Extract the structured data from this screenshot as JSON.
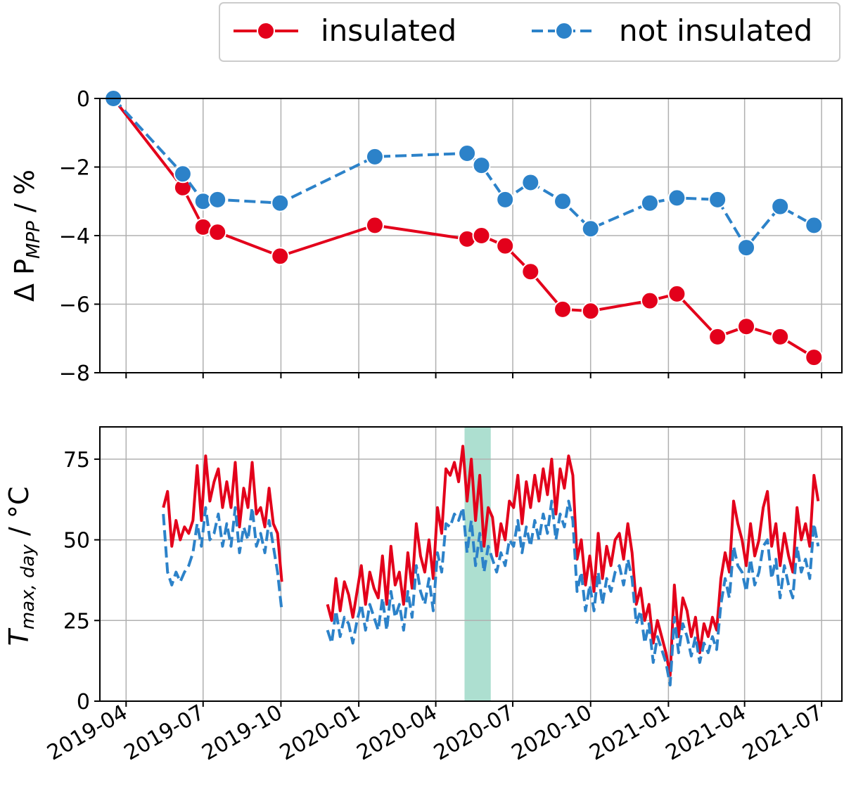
{
  "legend": {
    "placement": "top-right",
    "entries": [
      {
        "label": "insulated",
        "color": "#e3001b",
        "style": "solid",
        "marker": "circle"
      },
      {
        "label": "not insulated",
        "color": "#2c82c9",
        "style": "dashed",
        "marker": "circle"
      }
    ]
  },
  "colors": {
    "insulated": "#e3001b",
    "not_insulated": "#2c82c9",
    "highlight_band": "#9fd9c8",
    "grid": "#b0b0b0"
  },
  "x_ticks": [
    "2019-04",
    "2019-07",
    "2019-10",
    "2020-01",
    "2020-04",
    "2020-07",
    "2020-10",
    "2021-01",
    "2021-04",
    "2021-07"
  ],
  "chart_data": [
    {
      "type": "line",
      "ylabel_main": "Δ P",
      "ylabel_sub": "MPP",
      "ylabel_unit": " / %",
      "xlim": [
        "2019-03-01",
        "2021-07-25"
      ],
      "ylim": [
        -8,
        0
      ],
      "yticks": [
        0,
        -2,
        -4,
        -6,
        -8
      ],
      "ytick_labels": [
        "0",
        "−2",
        "−4",
        "−6",
        "−8"
      ],
      "grid": true,
      "series": [
        {
          "name": "insulated",
          "x": [
            "2019-03-17",
            "2019-06-07",
            "2019-07-01",
            "2019-07-18",
            "2019-09-30",
            "2020-01-20",
            "2020-05-08",
            "2020-05-25",
            "2020-06-22",
            "2020-07-22",
            "2020-08-29",
            "2020-10-01",
            "2020-12-10",
            "2021-01-11",
            "2021-02-28",
            "2021-04-03",
            "2021-05-13",
            "2021-06-22"
          ],
          "y": [
            0,
            -2.6,
            -3.75,
            -3.9,
            -4.6,
            -3.7,
            -4.1,
            -4.0,
            -4.3,
            -5.05,
            -6.15,
            -6.2,
            -5.9,
            -5.7,
            -6.95,
            -6.65,
            -6.95,
            -7.55
          ]
        },
        {
          "name": "not insulated",
          "x": [
            "2019-03-17",
            "2019-06-07",
            "2019-07-01",
            "2019-07-18",
            "2019-09-30",
            "2020-01-20",
            "2020-05-08",
            "2020-05-25",
            "2020-06-22",
            "2020-07-22",
            "2020-08-29",
            "2020-10-01",
            "2020-12-10",
            "2021-01-11",
            "2021-02-28",
            "2021-04-03",
            "2021-05-13",
            "2021-06-22"
          ],
          "y": [
            0,
            -2.2,
            -3.0,
            -2.95,
            -3.05,
            -1.7,
            -1.6,
            -1.95,
            -2.95,
            -2.45,
            -3.0,
            -3.8,
            -3.05,
            -2.9,
            -2.95,
            -4.35,
            -3.15,
            -3.7
          ]
        }
      ]
    },
    {
      "type": "line",
      "ylabel_main": "T",
      "ylabel_sub": "max, day",
      "ylabel_unit": " / °C",
      "xlim": [
        "2019-03-01",
        "2021-07-25"
      ],
      "ylim": [
        0,
        85
      ],
      "yticks": [
        0,
        25,
        50,
        75
      ],
      "ytick_labels": [
        "0",
        "25",
        "50",
        "75"
      ],
      "grid": true,
      "highlight_band": [
        "2020-05-05",
        "2020-06-05"
      ],
      "series": [
        {
          "name": "insulated",
          "segments": [
            {
              "x": [
                "2019-05-15",
                "2019-05-20",
                "2019-05-25",
                "2019-05-30",
                "2019-06-04",
                "2019-06-09",
                "2019-06-14",
                "2019-06-19",
                "2019-06-24",
                "2019-06-29",
                "2019-07-04",
                "2019-07-09",
                "2019-07-14",
                "2019-07-19",
                "2019-07-24",
                "2019-07-29",
                "2019-08-03",
                "2019-08-08",
                "2019-08-13",
                "2019-08-18",
                "2019-08-23",
                "2019-08-28",
                "2019-09-02",
                "2019-09-07",
                "2019-09-12",
                "2019-09-17",
                "2019-09-22",
                "2019-09-27",
                "2019-10-02"
              ],
              "y": [
                60,
                65,
                48,
                56,
                50,
                54,
                52,
                56,
                73,
                56,
                76,
                62,
                68,
                72,
                60,
                68,
                60,
                74,
                54,
                66,
                60,
                74,
                58,
                60,
                54,
                66,
                55,
                52,
                37
              ]
            },
            {
              "x": [
                "2019-11-25",
                "2019-11-30",
                "2019-12-05",
                "2019-12-10",
                "2019-12-15",
                "2019-12-20",
                "2019-12-25",
                "2019-12-30",
                "2020-01-04",
                "2020-01-09",
                "2020-01-14",
                "2020-01-19",
                "2020-01-24",
                "2020-01-29",
                "2020-02-03",
                "2020-02-08",
                "2020-02-13",
                "2020-02-18",
                "2020-02-23",
                "2020-02-28",
                "2020-03-04",
                "2020-03-09",
                "2020-03-14",
                "2020-03-19",
                "2020-03-24",
                "2020-03-29",
                "2020-04-03",
                "2020-04-08",
                "2020-04-13",
                "2020-04-18",
                "2020-04-23",
                "2020-04-28",
                "2020-05-03",
                "2020-05-08",
                "2020-05-13",
                "2020-05-18",
                "2020-05-23",
                "2020-05-28",
                "2020-06-02",
                "2020-06-07",
                "2020-06-12",
                "2020-06-17",
                "2020-06-22",
                "2020-06-27",
                "2020-07-02",
                "2020-07-07",
                "2020-07-12",
                "2020-07-17",
                "2020-07-22",
                "2020-07-27",
                "2020-08-01",
                "2020-08-06",
                "2020-08-11",
                "2020-08-16",
                "2020-08-21",
                "2020-08-26",
                "2020-08-31",
                "2020-09-05",
                "2020-09-10",
                "2020-09-15",
                "2020-09-20",
                "2020-09-25",
                "2020-09-30",
                "2020-10-05",
                "2020-10-10",
                "2020-10-15",
                "2020-10-20",
                "2020-10-25",
                "2020-10-30",
                "2020-11-04",
                "2020-11-09",
                "2020-11-14",
                "2020-11-19",
                "2020-11-24",
                "2020-11-29",
                "2020-12-04",
                "2020-12-09",
                "2020-12-14",
                "2020-12-19",
                "2020-12-24",
                "2020-12-29",
                "2021-01-03",
                "2021-01-08",
                "2021-01-13",
                "2021-01-18",
                "2021-01-23",
                "2021-01-28",
                "2021-02-02",
                "2021-02-07",
                "2021-02-12",
                "2021-02-17",
                "2021-02-22",
                "2021-02-27",
                "2021-03-04",
                "2021-03-09",
                "2021-03-14",
                "2021-03-19",
                "2021-03-24",
                "2021-03-29",
                "2021-04-03",
                "2021-04-08",
                "2021-04-13",
                "2021-04-18",
                "2021-04-23",
                "2021-04-28",
                "2021-05-03",
                "2021-05-08",
                "2021-05-13",
                "2021-05-18",
                "2021-05-23",
                "2021-05-28",
                "2021-06-02",
                "2021-06-07",
                "2021-06-12",
                "2021-06-17",
                "2021-06-22",
                "2021-06-27"
              ],
              "y": [
                30,
                25,
                38,
                28,
                37,
                33,
                26,
                34,
                42,
                30,
                40,
                35,
                32,
                45,
                30,
                48,
                36,
                40,
                30,
                46,
                35,
                55,
                45,
                40,
                50,
                38,
                60,
                52,
                72,
                70,
                74,
                68,
                79,
                62,
                75,
                56,
                70,
                48,
                60,
                57,
                45,
                55,
                50,
                62,
                60,
                70,
                55,
                68,
                60,
                70,
                62,
                72,
                64,
                75,
                58,
                72,
                66,
                76,
                70,
                44,
                50,
                36,
                45,
                34,
                52,
                38,
                48,
                42,
                50,
                52,
                44,
                55,
                46,
                30,
                35,
                25,
                30,
                18,
                25,
                20,
                15,
                8,
                36,
                20,
                32,
                28,
                20,
                26,
                15,
                24,
                20,
                26,
                22,
                38,
                46,
                40,
                62,
                55,
                50,
                42,
                55,
                45,
                50,
                60,
                65,
                48,
                55,
                42,
                52,
                45,
                40,
                60,
                50,
                55,
                48,
                70,
                62
              ]
            }
          ]
        },
        {
          "name": "not insulated",
          "segments": [
            {
              "x": [
                "2019-05-15",
                "2019-05-20",
                "2019-05-25",
                "2019-05-30",
                "2019-06-04",
                "2019-06-09",
                "2019-06-14",
                "2019-06-19",
                "2019-06-24",
                "2019-06-29",
                "2019-07-04",
                "2019-07-09",
                "2019-07-14",
                "2019-07-19",
                "2019-07-24",
                "2019-07-29",
                "2019-08-03",
                "2019-08-08",
                "2019-08-13",
                "2019-08-18",
                "2019-08-23",
                "2019-08-28",
                "2019-09-02",
                "2019-09-07",
                "2019-09-12",
                "2019-09-17",
                "2019-09-22",
                "2019-09-27",
                "2019-10-02"
              ],
              "y": [
                58,
                40,
                36,
                40,
                37,
                40,
                42,
                46,
                55,
                48,
                60,
                50,
                52,
                58,
                48,
                55,
                48,
                60,
                46,
                54,
                50,
                60,
                48,
                52,
                46,
                56,
                48,
                40,
                28
              ]
            },
            {
              "x": [
                "2019-11-25",
                "2019-11-30",
                "2019-12-05",
                "2019-12-10",
                "2019-12-15",
                "2019-12-20",
                "2019-12-25",
                "2019-12-30",
                "2020-01-04",
                "2020-01-09",
                "2020-01-14",
                "2020-01-19",
                "2020-01-24",
                "2020-01-29",
                "2020-02-03",
                "2020-02-08",
                "2020-02-13",
                "2020-02-18",
                "2020-02-23",
                "2020-02-28",
                "2020-03-04",
                "2020-03-09",
                "2020-03-14",
                "2020-03-19",
                "2020-03-24",
                "2020-03-29",
                "2020-04-03",
                "2020-04-08",
                "2020-04-13",
                "2020-04-18",
                "2020-04-23",
                "2020-04-28",
                "2020-05-03",
                "2020-05-08",
                "2020-05-13",
                "2020-05-18",
                "2020-05-23",
                "2020-05-28",
                "2020-06-02",
                "2020-06-07",
                "2020-06-12",
                "2020-06-17",
                "2020-06-22",
                "2020-06-27",
                "2020-07-02",
                "2020-07-07",
                "2020-07-12",
                "2020-07-17",
                "2020-07-22",
                "2020-07-27",
                "2020-08-01",
                "2020-08-06",
                "2020-08-11",
                "2020-08-16",
                "2020-08-21",
                "2020-08-26",
                "2020-08-31",
                "2020-09-05",
                "2020-09-10",
                "2020-09-15",
                "2020-09-20",
                "2020-09-25",
                "2020-09-30",
                "2020-10-05",
                "2020-10-10",
                "2020-10-15",
                "2020-10-20",
                "2020-10-25",
                "2020-10-30",
                "2020-11-04",
                "2020-11-09",
                "2020-11-14",
                "2020-11-19",
                "2020-11-24",
                "2020-11-29",
                "2020-12-04",
                "2020-12-09",
                "2020-12-14",
                "2020-12-19",
                "2020-12-24",
                "2020-12-29",
                "2021-01-03",
                "2021-01-08",
                "2021-01-13",
                "2021-01-18",
                "2021-01-23",
                "2021-01-28",
                "2021-02-02",
                "2021-02-07",
                "2021-02-12",
                "2021-02-17",
                "2021-02-22",
                "2021-02-27",
                "2021-03-04",
                "2021-03-09",
                "2021-03-14",
                "2021-03-19",
                "2021-03-24",
                "2021-03-29",
                "2021-04-03",
                "2021-04-08",
                "2021-04-13",
                "2021-04-18",
                "2021-04-23",
                "2021-04-28",
                "2021-05-03",
                "2021-05-08",
                "2021-05-13",
                "2021-05-18",
                "2021-05-23",
                "2021-05-28",
                "2021-06-02",
                "2021-06-07",
                "2021-06-12",
                "2021-06-17",
                "2021-06-22",
                "2021-06-27"
              ],
              "y": [
                22,
                18,
                28,
                20,
                26,
                24,
                18,
                25,
                30,
                22,
                30,
                26,
                22,
                32,
                22,
                34,
                26,
                30,
                22,
                34,
                26,
                42,
                34,
                30,
                38,
                28,
                46,
                40,
                55,
                54,
                58,
                56,
                60,
                46,
                56,
                42,
                52,
                40,
                48,
                44,
                40,
                46,
                42,
                50,
                48,
                56,
                46,
                54,
                48,
                56,
                50,
                58,
                52,
                62,
                50,
                58,
                54,
                62,
                56,
                34,
                40,
                28,
                36,
                28,
                40,
                30,
                38,
                34,
                40,
                42,
                36,
                44,
                38,
                24,
                28,
                18,
                24,
                12,
                20,
                16,
                12,
                5,
                26,
                15,
                24,
                20,
                14,
                20,
                12,
                18,
                15,
                20,
                16,
                30,
                38,
                32,
                48,
                42,
                40,
                34,
                44,
                36,
                40,
                48,
                50,
                38,
                44,
                32,
                42,
                36,
                32,
                48,
                40,
                44,
                38,
                55,
                48
              ]
            }
          ]
        }
      ]
    }
  ]
}
